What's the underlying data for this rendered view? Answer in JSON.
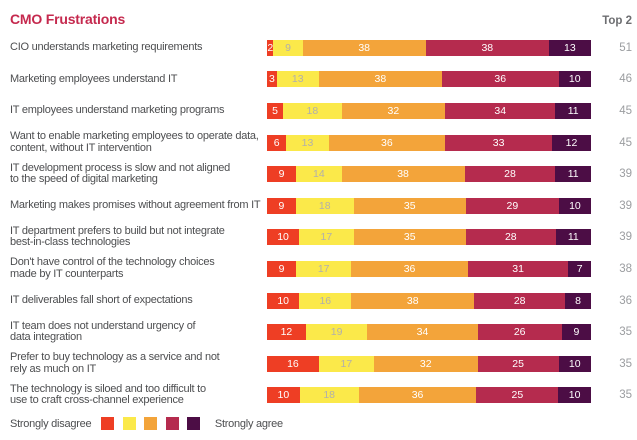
{
  "title": "CMO Frustrations",
  "top2_header": "Top 2",
  "colors": {
    "title_accent": "#c5294e",
    "label_text": "#4d4e50",
    "top2_value_text": "#9b9da0"
  },
  "legend": {
    "left_label": "Strongly disagree",
    "right_label": "Strongly agree"
  },
  "chart_data": {
    "type": "bar",
    "stacked": true,
    "orientation": "horizontal",
    "scale": "percent",
    "xlim": [
      0,
      100
    ],
    "grid": false,
    "legend_position": "bottom",
    "segment_names": [
      "strongly-disagree",
      "disagree",
      "somewhat-disagree",
      "agree",
      "strongly-agree"
    ],
    "segment_colors": [
      "#ee3e24",
      "#fbe94a",
      "#f3a43a",
      "#b52b4e",
      "#4c0d45"
    ],
    "value_label_colors": [
      "#ffffff",
      "#b2b0ab",
      "#ffffff",
      "#ffffff",
      "#ffffff"
    ],
    "rows": [
      {
        "label_lines": [
          "CIO understands marketing requirements"
        ],
        "values": [
          2,
          9,
          38,
          38,
          13
        ],
        "top2": 51
      },
      {
        "label_lines": [
          "Marketing employees understand IT"
        ],
        "values": [
          3,
          13,
          38,
          36,
          10
        ],
        "top2": 46
      },
      {
        "label_lines": [
          "IT employees understand marketing programs"
        ],
        "values": [
          5,
          18,
          32,
          34,
          11
        ],
        "top2": 45
      },
      {
        "label_lines": [
          "Want to enable marketing employees to operate data,",
          "content, without IT intervention"
        ],
        "values": [
          6,
          13,
          36,
          33,
          12
        ],
        "top2": 45
      },
      {
        "label_lines": [
          "IT development process is slow and not aligned",
          "to the speed of digital marketing"
        ],
        "values": [
          9,
          14,
          38,
          28,
          11
        ],
        "top2": 39
      },
      {
        "label_lines": [
          "Marketing makes promises without agreement from IT"
        ],
        "values": [
          9,
          18,
          35,
          29,
          10
        ],
        "top2": 39
      },
      {
        "label_lines": [
          "IT department prefers to build but not integrate",
          "best-in-class technologies"
        ],
        "values": [
          10,
          17,
          35,
          28,
          11
        ],
        "top2": 39
      },
      {
        "label_lines": [
          "Don't have control of the technology choices",
          "made by IT counterparts"
        ],
        "values": [
          9,
          17,
          36,
          31,
          7
        ],
        "top2": 38
      },
      {
        "label_lines": [
          "IT deliverables fall short of expectations"
        ],
        "values": [
          10,
          16,
          38,
          28,
          8
        ],
        "top2": 36
      },
      {
        "label_lines": [
          "IT team does not understand urgency of",
          "data integration"
        ],
        "values": [
          12,
          19,
          34,
          26,
          9
        ],
        "top2": 35
      },
      {
        "label_lines": [
          "Prefer to buy technology as a service and not",
          "rely as much on IT"
        ],
        "values": [
          16,
          17,
          32,
          25,
          10
        ],
        "top2": 35
      },
      {
        "label_lines": [
          "The technology is siloed and too difficult to",
          "use to craft cross-channel experience"
        ],
        "values": [
          10,
          18,
          36,
          25,
          10
        ],
        "top2": 35
      }
    ]
  }
}
